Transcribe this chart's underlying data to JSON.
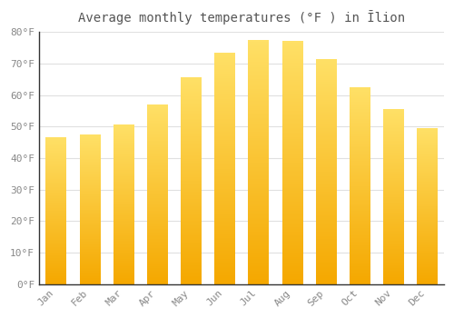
{
  "title": "Average monthly temperatures (°F ) in Īlion",
  "months": [
    "Jan",
    "Feb",
    "Mar",
    "Apr",
    "May",
    "Jun",
    "Jul",
    "Aug",
    "Sep",
    "Oct",
    "Nov",
    "Dec"
  ],
  "values": [
    46.5,
    47.5,
    50.5,
    57.0,
    65.5,
    73.5,
    77.5,
    77.0,
    71.5,
    62.5,
    55.5,
    49.5
  ],
  "bar_color_bottom": "#F5A800",
  "bar_color_top": "#FFE066",
  "ylim": [
    0,
    80
  ],
  "ytick_step": 10,
  "background_color": "#ffffff",
  "plot_bg_color": "#ffffff",
  "grid_color": "#e0e0e0",
  "title_fontsize": 10,
  "tick_fontsize": 8,
  "bar_width": 0.6
}
